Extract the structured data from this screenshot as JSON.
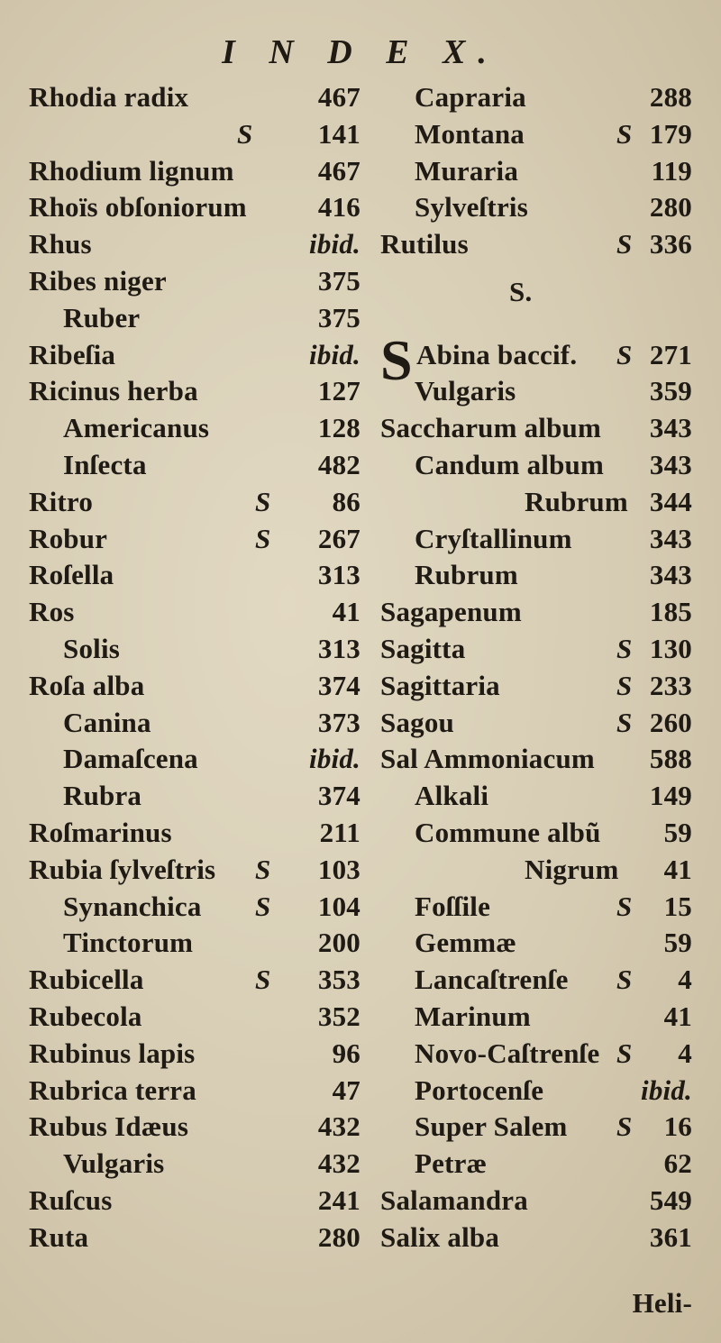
{
  "header": "I N D E X.",
  "left": [
    {
      "term": "Rhodia radix",
      "page": "467",
      "level": 0
    },
    {
      "mark": "S",
      "page": "141",
      "level": 1
    },
    {
      "term": "Rhodium lignum",
      "page": "467",
      "level": 0
    },
    {
      "term": "Rhoïs obſoniorum",
      "page": "416",
      "level": 0
    },
    {
      "term": "Rhus",
      "page": "ibid.",
      "level": 0
    },
    {
      "term": "Ribes niger",
      "page": "375",
      "level": 0
    },
    {
      "term": "Ruber",
      "page": "375",
      "level": 1
    },
    {
      "term": "Ribeſia",
      "page": "ibid.",
      "level": 0
    },
    {
      "term": "Ricinus herba",
      "page": "127",
      "level": 0
    },
    {
      "term": "Americanus",
      "page": "128",
      "level": 1
    },
    {
      "term": "Inſecta",
      "page": "482",
      "level": 1
    },
    {
      "term": "Ritro",
      "mark": "S",
      "page": "86",
      "level": 0
    },
    {
      "term": "Robur",
      "mark": "S",
      "page": "267",
      "level": 0
    },
    {
      "term": "Roſella",
      "page": "313",
      "level": 0
    },
    {
      "term": "Ros",
      "page": "41",
      "level": 0
    },
    {
      "term": "Solis",
      "page": "313",
      "level": 1
    },
    {
      "term": "Roſa alba",
      "page": "374",
      "level": 0
    },
    {
      "term": "Canina",
      "page": "373",
      "level": 1
    },
    {
      "term": "Damaſcena",
      "page": "ibid.",
      "level": 1
    },
    {
      "term": "Rubra",
      "page": "374",
      "level": 1
    },
    {
      "term": "Roſmarinus",
      "page": "211",
      "level": 0
    },
    {
      "term": "Rubia ſylveſtris",
      "mark": "S",
      "page": "103",
      "level": 0
    },
    {
      "term": "Synanchica",
      "mark": "S",
      "page": "104",
      "level": 1
    },
    {
      "term": "Tinctorum",
      "page": "200",
      "level": 1
    },
    {
      "term": "Rubicella",
      "mark": "S",
      "page": "353",
      "level": 0
    },
    {
      "term": "Rubecola",
      "page": "352",
      "level": 0
    },
    {
      "term": "Rubinus lapis",
      "page": "96",
      "level": 0
    },
    {
      "term": "Rubrica terra",
      "page": "47",
      "level": 0
    },
    {
      "term": "Rubus Idæus",
      "page": "432",
      "level": 0
    },
    {
      "term": "Vulgaris",
      "page": "432",
      "level": 1
    },
    {
      "term": "Ruſcus",
      "page": "241",
      "level": 0
    },
    {
      "term": "Ruta",
      "page": "280",
      "level": 0
    }
  ],
  "right": [
    {
      "term": "Capraria",
      "page": "288",
      "level": 1
    },
    {
      "term": "Montana",
      "mark": "S",
      "page": "179",
      "level": 1
    },
    {
      "term": "Muraria",
      "page": "119",
      "level": 1
    },
    {
      "term": "Sylveſtris",
      "page": "280",
      "level": 1
    },
    {
      "term": "Rutilus",
      "mark": "S",
      "page": "336",
      "level": 0
    },
    {
      "initial": "S",
      "term": "Abina baccif.",
      "mark": "S",
      "page": "271",
      "level": 0
    },
    {
      "term": "Vulgaris",
      "page": "359",
      "level": 1
    },
    {
      "term": "Saccharum album",
      "page": "343",
      "level": 0
    },
    {
      "term": "Candum album",
      "page": "343",
      "level": 1
    },
    {
      "term": "Rubrum",
      "page": "344",
      "level": 2
    },
    {
      "term": "Cryſtallinum",
      "page": "343",
      "level": 1
    },
    {
      "term": "Rubrum",
      "page": "343",
      "level": 1
    },
    {
      "term": "Sagapenum",
      "page": "185",
      "level": 0
    },
    {
      "term": "Sagitta",
      "mark": "S",
      "page": "130",
      "level": 0
    },
    {
      "term": "Sagittaria",
      "mark": "S",
      "page": "233",
      "level": 0
    },
    {
      "term": "Sagou",
      "mark": "S",
      "page": "260",
      "level": 0
    },
    {
      "term": "Sal Ammoniacum",
      "page": "588",
      "level": 0
    },
    {
      "term": "Alkali",
      "page": "149",
      "level": 1
    },
    {
      "term": "Commune albũ",
      "page": "59",
      "level": 1
    },
    {
      "term": "Nigrum",
      "page": "41",
      "level": 2
    },
    {
      "term": "Foſſile",
      "mark": "S",
      "page": "15",
      "level": 1
    },
    {
      "term": "Gemmæ",
      "page": "59",
      "level": 1
    },
    {
      "term": "Lancaſtrenſe",
      "mark": "S",
      "page": "4",
      "level": 1
    },
    {
      "term": "Marinum",
      "page": "41",
      "level": 1
    },
    {
      "term": "Novo-Caſtrenſe",
      "mark": "S",
      "page": "4",
      "level": 1
    },
    {
      "term": "Portocenſe",
      "page": "ibid.",
      "level": 1
    },
    {
      "term": "Super Salem",
      "mark": "S",
      "page": "16",
      "level": 1
    },
    {
      "term": "Petræ",
      "page": "62",
      "level": 1
    },
    {
      "term": "Salamandra",
      "page": "549",
      "level": 0
    },
    {
      "term": "Salix alba",
      "page": "361",
      "level": 0
    }
  ],
  "section": "S.",
  "catchword": "Heli-"
}
